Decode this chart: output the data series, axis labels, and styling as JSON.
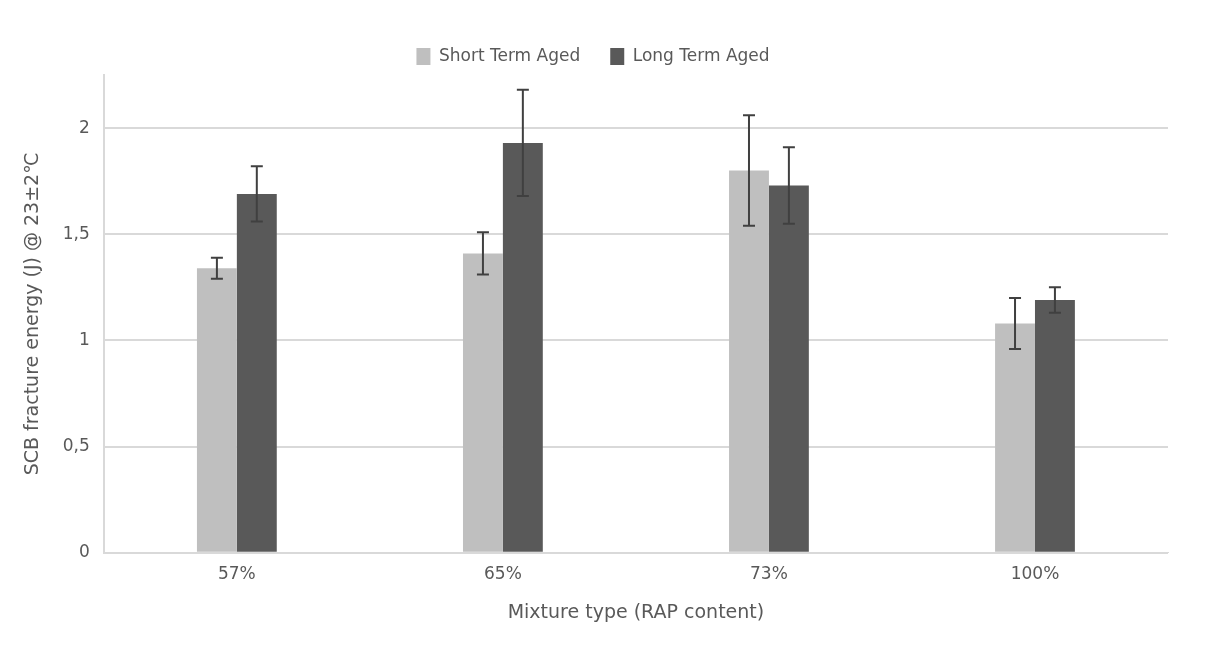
{
  "chart_data": {
    "type": "bar",
    "xlabel": "Mixture type (RAP content)",
    "ylabel": "SCB fracture energy (J) @ 23±2℃",
    "categories": [
      "57%",
      "65%",
      "73%",
      "100%"
    ],
    "series": [
      {
        "name": "Short Term Aged",
        "color": "#bfbfbf",
        "values": [
          1.34,
          1.41,
          1.8,
          1.08
        ],
        "errors": [
          0.05,
          0.1,
          0.26,
          0.12
        ]
      },
      {
        "name": "Long Term Aged",
        "color": "#595959",
        "values": [
          1.69,
          1.93,
          1.73,
          1.19
        ],
        "errors": [
          0.13,
          0.25,
          0.18,
          0.06
        ]
      }
    ],
    "ylim": [
      0,
      2.25
    ],
    "yticks": [
      0,
      {
        "value": 0.5,
        "label": "0,5"
      },
      1,
      {
        "value": 1.5,
        "label": "1,5"
      },
      2
    ],
    "grid": "y",
    "legend": "top"
  }
}
